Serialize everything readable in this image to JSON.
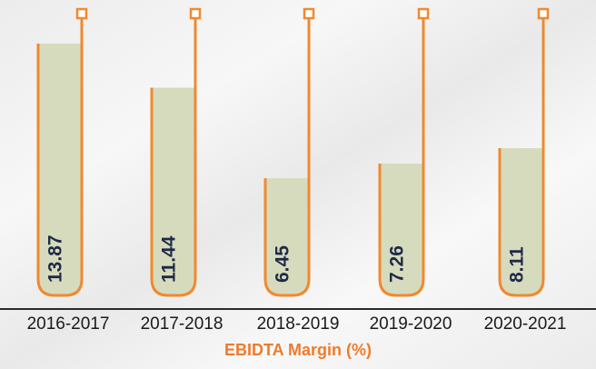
{
  "chart_data": {
    "type": "bar",
    "title": "EBIDTA Margin  (%)",
    "categories": [
      "2016-2017",
      "2017-2018",
      "2018-2019",
      "2019-2020",
      "2020-2021"
    ],
    "values": [
      13.87,
      11.44,
      6.45,
      7.26,
      8.11
    ],
    "color": "#d7dbbd",
    "outline_color": "#f0892f"
  }
}
